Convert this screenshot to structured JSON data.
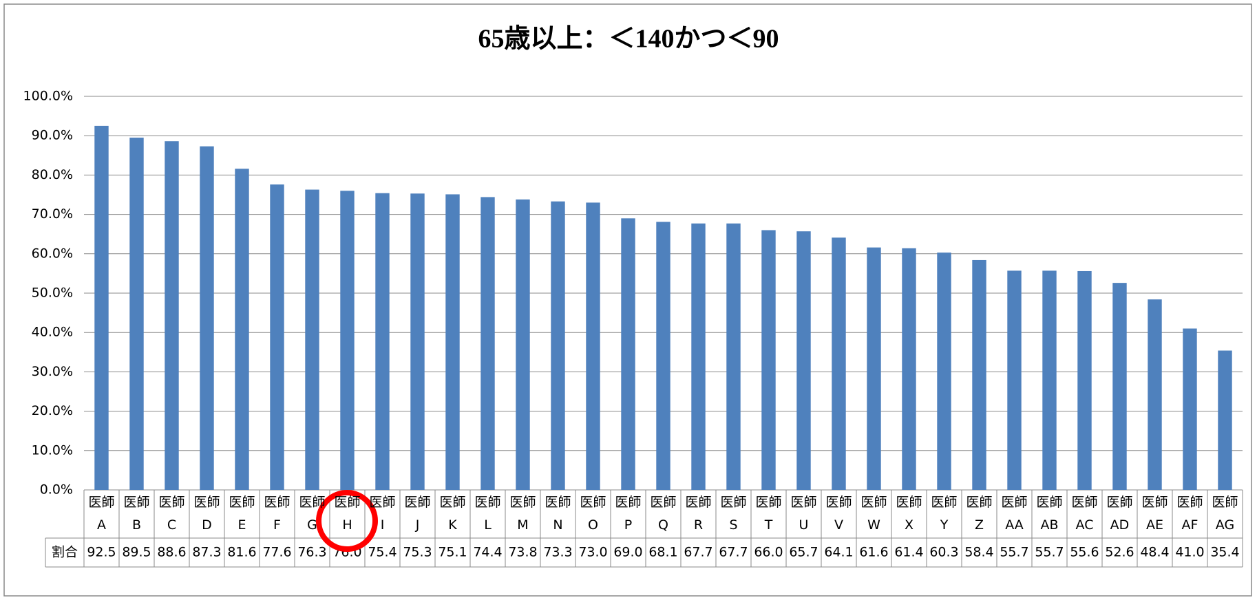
{
  "chart_data": {
    "type": "bar",
    "title": "65歳以上：＜140かつ＜90",
    "categories": [
      "医師\nA",
      "医師\nB",
      "医師\nC",
      "医師\nD",
      "医師\nE",
      "医師\nF",
      "医師\nG",
      "医師\nH",
      "医師\nI",
      "医師\nJ",
      "医師\nK",
      "医師\nL",
      "医師\nM",
      "医師\nN",
      "医師\nO",
      "医師\nP",
      "医師\nQ",
      "医師\nR",
      "医師\nS",
      "医師\nT",
      "医師\nU",
      "医師\nV",
      "医師\nW",
      "医師\nX",
      "医師\nY",
      "医師\nZ",
      "医師\nAA",
      "医師\nAB",
      "医師\nAC",
      "医師\nAD",
      "医師\nAE",
      "医師\nAF",
      "医師\nAG"
    ],
    "series": [
      {
        "name": "割合",
        "color": "#4f81bd",
        "values": [
          92.5,
          89.5,
          88.6,
          87.3,
          81.6,
          77.6,
          76.3,
          76.0,
          75.4,
          75.3,
          75.1,
          74.4,
          73.8,
          73.3,
          73.0,
          69.0,
          68.1,
          67.7,
          67.7,
          66.0,
          65.7,
          64.1,
          61.6,
          61.4,
          60.3,
          58.4,
          55.7,
          55.7,
          55.6,
          52.6,
          48.4,
          41.0,
          35.4
        ],
        "value_labels": [
          "92.5",
          "89.5",
          "88.6",
          "87.3",
          "81.6",
          "77.6",
          "76.3",
          "76.0",
          "75.4",
          "75.3",
          "75.1",
          "74.4",
          "73.8",
          "73.3",
          "73.0",
          "69.0",
          "68.1",
          "67.7",
          "67.7",
          "66.0",
          "65.7",
          "64.1",
          "61.6",
          "61.4",
          "60.3",
          "58.4",
          "55.7",
          "55.7",
          "55.6",
          "52.6",
          "48.4",
          "41.0",
          "35.4"
        ]
      }
    ],
    "ylim": [
      0,
      100
    ],
    "yticks": [
      {
        "value": 0,
        "label": "0.0%"
      },
      {
        "value": 10,
        "label": "10.0%"
      },
      {
        "value": 20,
        "label": "20.0%"
      },
      {
        "value": 30,
        "label": "30.0%"
      },
      {
        "value": 40,
        "label": "40.0%"
      },
      {
        "value": 50,
        "label": "50.0%"
      },
      {
        "value": 60,
        "label": "60.0%"
      },
      {
        "value": 70,
        "label": "70.0%"
      },
      {
        "value": 80,
        "label": "80.0%"
      },
      {
        "value": 90,
        "label": "90.0%"
      },
      {
        "value": 100,
        "label": "100.0%"
      }
    ],
    "grid": true
  }
}
